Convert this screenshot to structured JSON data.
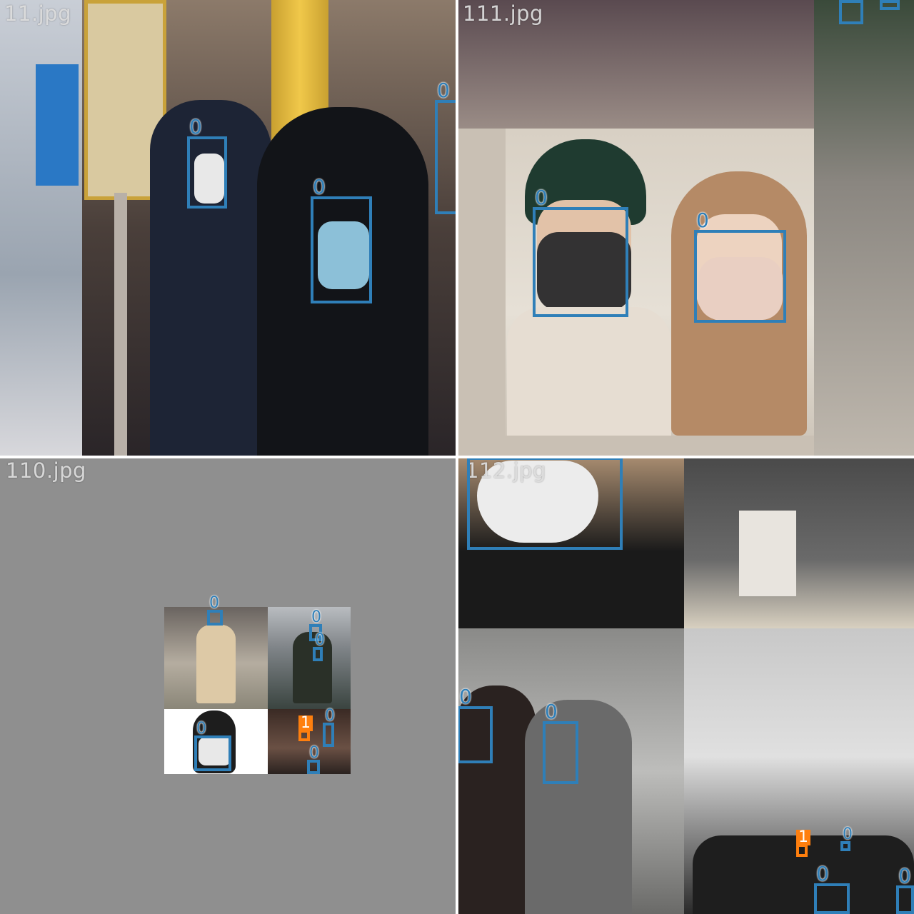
{
  "tiles": [
    {
      "filename": "11.jpg"
    },
    {
      "filename": "111.jpg"
    },
    {
      "filename": "110.jpg"
    },
    {
      "filename": "112.jpg"
    }
  ],
  "class_labels": {
    "mask": "0",
    "no_mask": "1"
  },
  "colors": {
    "class0": "#2f7fb8",
    "class1": "#ff7f0e",
    "pad_gray": "#8f8f8f"
  }
}
